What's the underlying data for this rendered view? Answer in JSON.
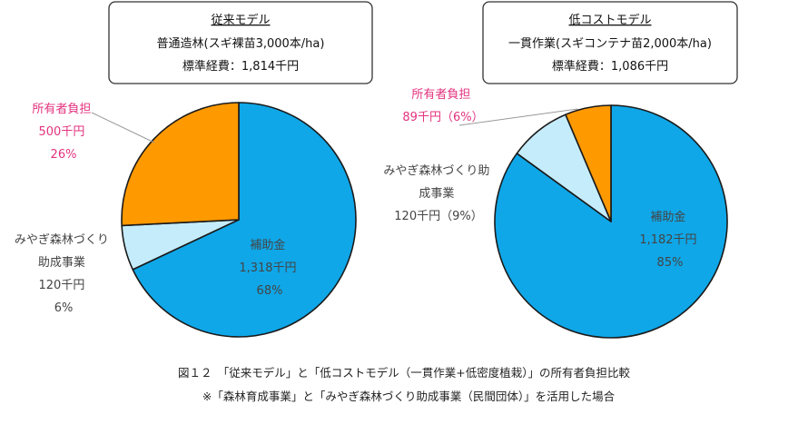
{
  "chart_data": [
    {
      "type": "pie",
      "box": {
        "title": "従来モデル",
        "line1": "普通造林(スギ裸苗3,000本/ha)",
        "line2": "標準経費：1,814千円"
      },
      "slices": [
        {
          "key": "subsidy",
          "lines": [
            "補助金",
            "1,318千円",
            "68%"
          ],
          "value": 1318,
          "color": "#0fa7e8",
          "label_color": "#444444"
        },
        {
          "key": "miyagi",
          "lines": [
            "みやぎ森林づくり",
            "助成事業",
            "120千円",
            "6%"
          ],
          "value": 120,
          "color": "#c5ecfb",
          "label_color": "#444444"
        },
        {
          "key": "owner",
          "lines": [
            "所有者負担",
            "500千円",
            "26%"
          ],
          "value": 500,
          "color": "#ff9900",
          "label_color": "#e3337f"
        }
      ]
    },
    {
      "type": "pie",
      "box": {
        "title": "低コストモデル",
        "line1": "一貫作業(スギコンテナ苗2,000本/ha)",
        "line2": "標準経費：1,086千円"
      },
      "slices": [
        {
          "key": "subsidy",
          "lines": [
            "補助金",
            "1,182千円",
            "85%"
          ],
          "value": 1182,
          "color": "#0fa7e8",
          "label_color": "#444444"
        },
        {
          "key": "miyagi",
          "lines": [
            "みやぎ森林づくり助",
            "成事業",
            "120千円（9%）"
          ],
          "value": 120,
          "color": "#c5ecfb",
          "label_color": "#444444"
        },
        {
          "key": "owner",
          "lines": [
            "所有者負担",
            "89千円（6%）"
          ],
          "value": 89,
          "color": "#ff9900",
          "label_color": "#e3337f"
        }
      ]
    }
  ],
  "caption": {
    "line1": "図１２　「従来モデル」と「低コストモデル（一貫作業+低密度植栽）」の所有者負担比較",
    "line2": "※「森林育成事業」と「みやぎ森林づくり助成事業（民間団体）」を活用した場合"
  }
}
